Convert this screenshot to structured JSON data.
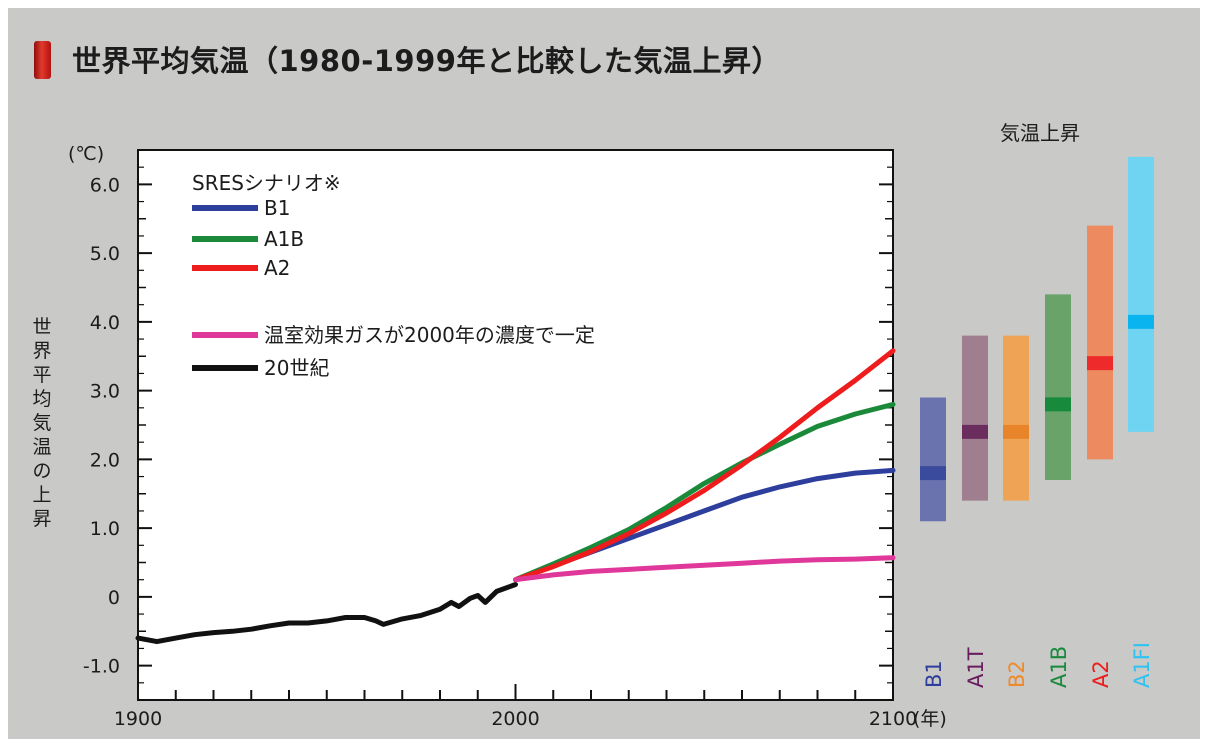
{
  "title": "世界平均気温（1980-1999年と比較した気温上昇）",
  "chart_data": {
    "type": "line",
    "title": "世界平均気温（1980-1999年と比較した気温上昇）",
    "ylabel": "世界平均気温の上昇",
    "y_unit": "(℃)",
    "x_unit": "(年)",
    "xlim": [
      1900,
      2100
    ],
    "ylim": [
      -1.5,
      6.5
    ],
    "x_ticks": [
      "1900",
      "2000",
      "2100"
    ],
    "y_ticks": [
      "-1.0",
      "0",
      "1.0",
      "2.0",
      "3.0",
      "4.0",
      "5.0",
      "6.0"
    ],
    "grid": false,
    "legend": {
      "title": "SRESシナリオ※",
      "placement": "top-left",
      "entries": [
        "B1",
        "A1B",
        "A2",
        "温室効果ガスが2000年の濃度で一定",
        "20世紀"
      ]
    },
    "series": [
      {
        "name": "20世紀",
        "color": "#111111",
        "x": [
          1900,
          1905,
          1910,
          1915,
          1920,
          1925,
          1930,
          1935,
          1940,
          1945,
          1950,
          1955,
          1960,
          1963,
          1965,
          1970,
          1975,
          1980,
          1983,
          1985,
          1988,
          1990,
          1992,
          1995,
          2000
        ],
        "y": [
          -0.6,
          -0.65,
          -0.6,
          -0.55,
          -0.52,
          -0.5,
          -0.47,
          -0.42,
          -0.38,
          -0.38,
          -0.35,
          -0.3,
          -0.3,
          -0.35,
          -0.4,
          -0.32,
          -0.27,
          -0.18,
          -0.08,
          -0.14,
          -0.02,
          0.02,
          -0.08,
          0.08,
          0.18
        ]
      },
      {
        "name": "B1",
        "color": "#2e3e9c",
        "x": [
          2000,
          2010,
          2020,
          2030,
          2040,
          2050,
          2060,
          2070,
          2080,
          2090,
          2100
        ],
        "y": [
          0.25,
          0.45,
          0.65,
          0.85,
          1.05,
          1.25,
          1.45,
          1.6,
          1.72,
          1.8,
          1.84
        ]
      },
      {
        "name": "A1B",
        "color": "#1a8a3a",
        "x": [
          2000,
          2010,
          2020,
          2030,
          2040,
          2050,
          2060,
          2070,
          2080,
          2090,
          2100
        ],
        "y": [
          0.25,
          0.48,
          0.72,
          0.98,
          1.3,
          1.65,
          1.95,
          2.22,
          2.48,
          2.66,
          2.8
        ]
      },
      {
        "name": "A2",
        "color": "#ee1c1c",
        "x": [
          2000,
          2010,
          2020,
          2030,
          2040,
          2050,
          2060,
          2070,
          2080,
          2090,
          2100
        ],
        "y": [
          0.25,
          0.44,
          0.66,
          0.92,
          1.22,
          1.55,
          1.92,
          2.32,
          2.75,
          3.15,
          3.58
        ]
      },
      {
        "name": "温室効果ガスが2000年の濃度で一定",
        "color": "#e0379a",
        "x": [
          2000,
          2010,
          2020,
          2030,
          2040,
          2050,
          2060,
          2070,
          2080,
          2090,
          2100
        ],
        "y": [
          0.25,
          0.32,
          0.37,
          0.4,
          0.43,
          0.46,
          0.49,
          0.52,
          0.54,
          0.55,
          0.57
        ]
      }
    ],
    "ranges": {
      "title": "気温上昇",
      "items": [
        {
          "name": "B1",
          "color": "#6a73ad",
          "median_color": "#3a4a9c",
          "low": 1.1,
          "high": 2.9,
          "best": 1.8
        },
        {
          "name": "A1T",
          "color": "#9f7f8f",
          "median_color": "#6a2d5e",
          "low": 1.4,
          "high": 3.8,
          "best": 2.4
        },
        {
          "name": "B2",
          "color": "#efa455",
          "median_color": "#e8852a",
          "low": 1.4,
          "high": 3.8,
          "best": 2.4
        },
        {
          "name": "A1B",
          "color": "#6aa36a",
          "median_color": "#178a3c",
          "low": 1.7,
          "high": 4.4,
          "best": 2.8
        },
        {
          "name": "A2",
          "color": "#ed8a5f",
          "median_color": "#ee2a2a",
          "low": 2.0,
          "high": 5.4,
          "best": 3.4
        },
        {
          "name": "A1FI",
          "color": "#6fd3f2",
          "median_color": "#0ab4ee",
          "low": 2.4,
          "high": 6.4,
          "best": 4.0
        }
      ],
      "label_colors": {
        "B1": "#2e3e9c",
        "A1T": "#6a1d5e",
        "B2": "#ef8a2a",
        "A1B": "#178a3c",
        "A2": "#ee1c1c",
        "A1FI": "#2ec2f2"
      }
    }
  }
}
